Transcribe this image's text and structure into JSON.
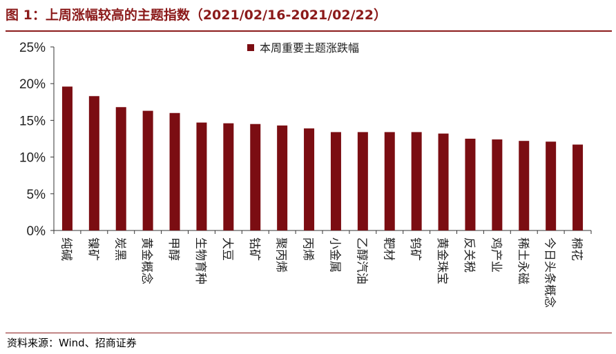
{
  "title": "图 1：上周涨幅较高的主题指数（2021/02/16-2021/02/22）",
  "source": "资料来源：Wind、招商证券",
  "colors": {
    "bar": "#7b0d12",
    "accent": "#8b1a1a"
  },
  "chart_data": {
    "type": "bar",
    "title": "",
    "xlabel": "",
    "ylabel": "",
    "legend": "top-center",
    "grid": false,
    "ylim": [
      0,
      25
    ],
    "yticks": [
      "0%",
      "5%",
      "10%",
      "15%",
      "20%",
      "25%"
    ],
    "categories": [
      "纯碱",
      "镍矿",
      "炭黑",
      "黄金概念",
      "甲醇",
      "生物育种",
      "大豆",
      "钴矿",
      "聚丙烯",
      "丙烯",
      "小金属",
      "乙醇汽油",
      "靶材",
      "钨矿",
      "黄金珠宝",
      "反关税",
      "鸡产业",
      "稀土永磁",
      "今日头条概念",
      "棉花"
    ],
    "series": [
      {
        "name": "本周重要主题涨跌幅",
        "values": [
          19.6,
          18.3,
          16.8,
          16.3,
          16.0,
          14.7,
          14.6,
          14.5,
          14.3,
          13.9,
          13.4,
          13.4,
          13.4,
          13.4,
          13.2,
          12.5,
          12.4,
          12.2,
          12.1,
          11.7
        ]
      }
    ]
  }
}
